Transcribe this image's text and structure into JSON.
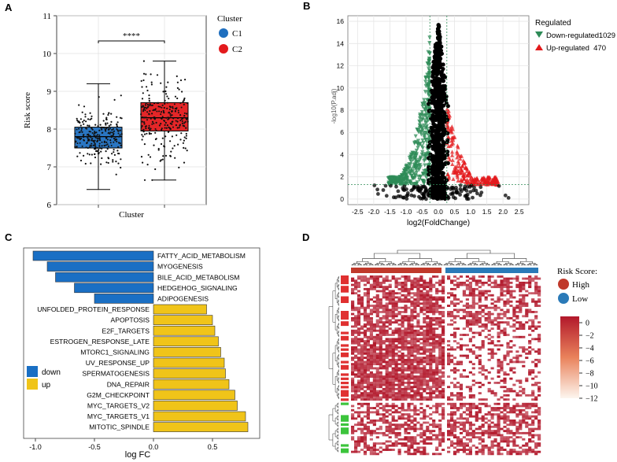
{
  "panel_letters": [
    "A",
    "B",
    "C",
    "D"
  ],
  "colors": {
    "c1": "#1f6fbf",
    "c2": "#e31a1c",
    "down": "#2e8b57",
    "up": "#e31a1c",
    "ns": "#000000",
    "gsea_down": "#1a6fc4",
    "gsea_up": "#f0c419",
    "heat_high": "#b2182b",
    "heat_low": "#ffffff",
    "risk_high": "#c0392b",
    "risk_low": "#2a7ab8"
  },
  "chart_data": [
    {
      "type": "box",
      "panel": "A",
      "ylabel": "Risk score",
      "xlabel": "Cluster",
      "ylim": [
        6,
        11
      ],
      "yticks": [
        "6",
        "7",
        "8",
        "9",
        "10",
        "11"
      ],
      "significance": "****",
      "legend_title": "Cluster",
      "series": [
        {
          "name": "C1",
          "min": 6.4,
          "q1": 7.5,
          "median": 7.8,
          "q3": 8.05,
          "max": 9.2
        },
        {
          "name": "C2",
          "min": 6.65,
          "q1": 7.95,
          "median": 8.3,
          "q3": 8.7,
          "max": 9.8
        }
      ]
    },
    {
      "type": "scatter",
      "panel": "B",
      "xlabel": "log2(FoldChange)",
      "ylabel": "-log10(P.adj)",
      "xlim": [
        -2.8,
        2.8
      ],
      "ylim": [
        -0.5,
        16.5
      ],
      "xticks": [
        "-2.5",
        "-2.0",
        "-1.5",
        "-1.0",
        "-0.5",
        "0.0",
        "0.5",
        "1.0",
        "1.5",
        "2.0",
        "2.5"
      ],
      "yticks": [
        "0",
        "2",
        "4",
        "6",
        "8",
        "10",
        "12",
        "14",
        "16"
      ],
      "threshold_x": [
        -0.263,
        0.263
      ],
      "threshold_y": 1.3,
      "legend_title": "Regulated",
      "legend": [
        {
          "name": "Down-regulated",
          "count": "1029"
        },
        {
          "name": "Up-regulated",
          "count": "470"
        }
      ]
    },
    {
      "type": "bar",
      "panel": "C",
      "xlabel": "log FC",
      "xlim": [
        -1.1,
        0.9
      ],
      "xticks": [
        "-1.0",
        "-0.5",
        "0.0",
        "0.5"
      ],
      "legend": [
        "down",
        "up"
      ],
      "categories": [
        "FATTY_ACID_METABOLISM",
        "MYOGENESIS",
        "BILE_ACID_METABOLISM",
        "HEDGEHOG_SIGNALING",
        "ADIPOGENESIS",
        "UNFOLDED_PROTEIN_RESPONSE",
        "APOPTOSIS",
        "E2F_TARGETS",
        "ESTROGEN_RESPONSE_LATE",
        "MTORC1_SIGNALING",
        "UV_RESPONSE_UP",
        "SPERMATOGENESIS",
        "DNA_REPAIR",
        "G2M_CHECKPOINT",
        "MYC_TARGETS_V2",
        "MYC_TARGETS_V1",
        "MITOTIC_SPINDLE"
      ],
      "values": [
        -1.02,
        -0.9,
        -0.83,
        -0.67,
        -0.5,
        0.45,
        0.5,
        0.52,
        0.55,
        0.57,
        0.6,
        0.61,
        0.64,
        0.69,
        0.71,
        0.78,
        0.8
      ]
    },
    {
      "type": "heatmap",
      "panel": "D",
      "legend_title": "Risk Score:",
      "groups": [
        "High",
        "Low"
      ],
      "colorbar_ticks": [
        "0",
        "−2",
        "−4",
        "−6",
        "−8",
        "−10",
        "−12"
      ],
      "colorbar_range": [
        -12,
        1
      ]
    }
  ]
}
